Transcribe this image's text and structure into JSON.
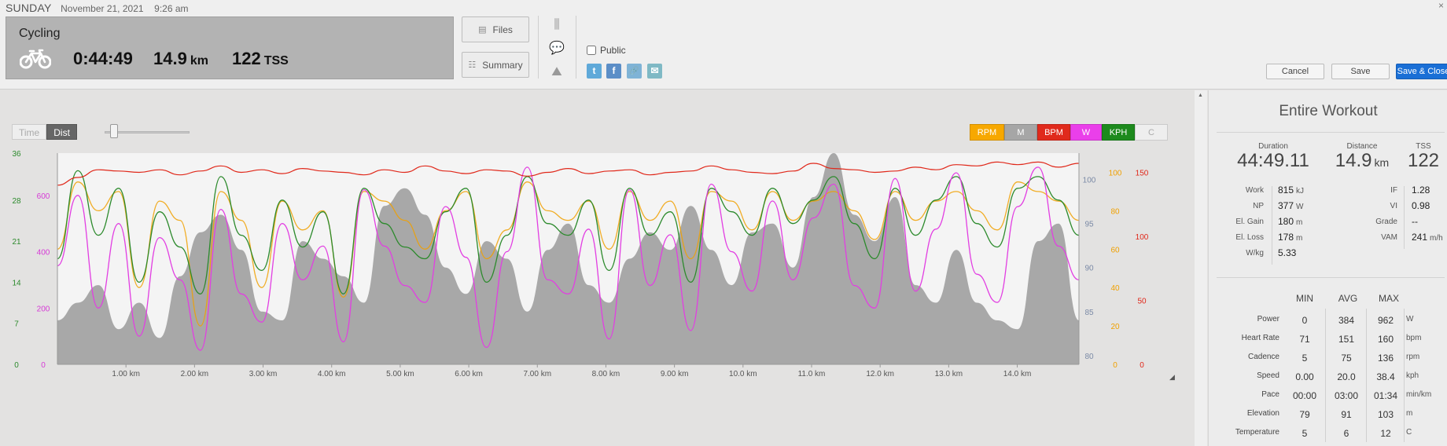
{
  "header": {
    "day": "SUNDAY",
    "date": "November 21, 2021",
    "time": "9:26 am",
    "close_icon": "×"
  },
  "summary": {
    "sport": "Cycling",
    "sport_icon": "bicycle-icon",
    "duration": "0:44:49",
    "distance": "14.9",
    "distance_unit": "km",
    "tss": "122",
    "tss_unit": "TSS"
  },
  "sidebuttons": {
    "files": "Files",
    "summary": "Summary",
    "files_icon": "▤",
    "summary_icon": "☷"
  },
  "tools": {
    "bar_icon": "⫼",
    "comment_icon": "💬",
    "area_icon": "⛰"
  },
  "share": {
    "public_label": "Public",
    "public_checked": false,
    "twitter_icon": "t",
    "facebook_icon": "f",
    "link_icon": "🔗",
    "email_icon": "✉",
    "colors": {
      "twitter": "#5fa9d9",
      "facebook": "#5b8ec7",
      "link": "#7fb3d6",
      "email": "#7fb9c5"
    }
  },
  "actions": {
    "cancel": "Cancel",
    "save": "Save",
    "save_close": "Save & Close"
  },
  "chart_controls": {
    "time": "Time",
    "dist": "Dist",
    "toggles": [
      {
        "label": "RPM",
        "bg": "#f7a800",
        "fg": "#ffffff"
      },
      {
        "label": "M",
        "bg": "#a6a6a6",
        "fg": "#ffffff"
      },
      {
        "label": "BPM",
        "bg": "#e02a1c",
        "fg": "#ffffff"
      },
      {
        "label": "W",
        "bg": "#ea3fea",
        "fg": "#ffffff"
      },
      {
        "label": "KPH",
        "bg": "#1d8a1d",
        "fg": "#ffffff"
      },
      {
        "label": "C",
        "bg": "#eeeeee",
        "fg": "#aaaaaa"
      }
    ],
    "resize_icon": "◢"
  },
  "chart_data": {
    "type": "line",
    "x_unit": "km",
    "xlim": [
      0,
      14.9
    ],
    "x_ticks": [
      "1.00 km",
      "2.00 km",
      "3.00 km",
      "4.00 km",
      "5.00 km",
      "6.00 km",
      "7.00 km",
      "8.00 km",
      "9.00 km",
      "10.0 km",
      "11.0 km",
      "12.0 km",
      "13.0 km",
      "14.0 km"
    ],
    "axes": {
      "speed": {
        "ticks": [
          "36",
          "28",
          "21",
          "14",
          "7",
          "0"
        ],
        "range": [
          0,
          36
        ],
        "color": "#2c8a2c"
      },
      "power": {
        "ticks": [
          "600",
          "400",
          "200",
          "0"
        ],
        "range": [
          0,
          750
        ],
        "color": "#d63ad6"
      },
      "elevation": {
        "ticks": [
          "100",
          "95",
          "90",
          "85",
          "80"
        ],
        "range": [
          79,
          103
        ],
        "color": "#7b8aa6"
      },
      "cadence": {
        "ticks": [
          "100",
          "80",
          "60",
          "40",
          "20",
          "0"
        ],
        "range": [
          0,
          110
        ],
        "color": "#f0a000"
      },
      "heart_rate": {
        "ticks": [
          "150",
          "100",
          "50",
          "0"
        ],
        "range": [
          0,
          165
        ],
        "color": "#e0281a"
      }
    },
    "series": [
      {
        "name": "Heart Rate",
        "color": "#e0281a",
        "values": [
          140,
          146,
          152,
          151,
          150,
          152,
          148,
          151,
          155,
          150,
          152,
          149,
          153,
          151,
          150,
          148,
          152,
          150,
          155,
          151,
          149,
          152,
          151,
          147,
          150,
          153,
          149,
          151,
          152,
          148,
          150,
          151,
          155,
          152,
          150,
          149,
          151,
          157,
          153,
          152,
          150,
          151,
          154,
          152,
          156,
          155,
          158,
          156,
          158,
          154,
          157
        ]
      },
      {
        "name": "Elevation",
        "color": "#9a9a9a",
        "values": [
          84,
          86,
          88,
          83,
          86,
          82,
          89,
          94,
          96,
          92,
          85,
          84,
          93,
          91,
          89,
          86,
          97,
          99,
          96,
          90,
          87,
          93,
          91,
          85,
          92,
          95,
          88,
          86,
          91,
          94,
          92,
          97,
          92,
          88,
          94,
          95,
          90,
          98,
          103,
          96,
          93,
          98,
          88,
          86,
          92,
          86,
          84,
          83,
          93,
          95,
          84
        ]
      },
      {
        "name": "Cadence",
        "color": "#f0a000",
        "values": [
          60,
          95,
          80,
          90,
          40,
          85,
          75,
          20,
          90,
          75,
          40,
          85,
          70,
          80,
          35,
          90,
          85,
          75,
          60,
          80,
          90,
          55,
          70,
          95,
          80,
          75,
          85,
          60,
          90,
          75,
          85,
          55,
          90,
          85,
          70,
          90,
          75,
          85,
          90,
          80,
          65,
          90,
          75,
          85,
          90,
          80,
          70,
          95,
          90,
          85,
          75
        ]
      },
      {
        "name": "Speed",
        "color": "#2c8a2c",
        "values": [
          18,
          33,
          22,
          30,
          14,
          26,
          20,
          12,
          32,
          22,
          16,
          28,
          20,
          26,
          12,
          30,
          24,
          20,
          18,
          26,
          30,
          14,
          22,
          32,
          24,
          22,
          28,
          16,
          30,
          22,
          26,
          14,
          30,
          26,
          22,
          30,
          24,
          28,
          32,
          24,
          18,
          30,
          22,
          28,
          32,
          24,
          20,
          30,
          32,
          28,
          22
        ]
      },
      {
        "name": "Power",
        "color": "#e23ee2",
        "values": [
          350,
          600,
          200,
          500,
          100,
          450,
          300,
          50,
          550,
          250,
          150,
          500,
          300,
          420,
          80,
          620,
          420,
          280,
          220,
          560,
          380,
          60,
          400,
          700,
          300,
          250,
          480,
          90,
          620,
          280,
          460,
          120,
          640,
          400,
          260,
          580,
          300,
          520,
          640,
          280,
          200,
          660,
          260,
          480,
          680,
          320,
          220,
          560,
          700,
          420,
          300
        ]
      }
    ]
  },
  "panel": {
    "title": "Entire Workout",
    "duration_label": "Duration",
    "duration": "44:49.11",
    "distance_label": "Distance",
    "distance": "14.9",
    "distance_unit": "km",
    "tss_label": "TSS",
    "tss": "122",
    "left_stats": [
      {
        "k": "Work",
        "v": "815",
        "u": "kJ"
      },
      {
        "k": "NP",
        "v": "377",
        "u": "W"
      },
      {
        "k": "El. Gain",
        "v": "180",
        "u": "m"
      },
      {
        "k": "El. Loss",
        "v": "178",
        "u": "m"
      },
      {
        "k": "W/kg",
        "v": "5.33",
        "u": ""
      }
    ],
    "right_stats": [
      {
        "k": "IF",
        "v": "1.28",
        "u": ""
      },
      {
        "k": "VI",
        "v": "0.98",
        "u": ""
      },
      {
        "k": "Grade",
        "v": "--",
        "u": ""
      },
      {
        "k": "VAM",
        "v": "241",
        "u": "m/h"
      }
    ],
    "range_headers": [
      "MIN",
      "AVG",
      "MAX"
    ],
    "range_rows": [
      {
        "name": "Power",
        "min": "0",
        "avg": "384",
        "max": "962",
        "unit": "W"
      },
      {
        "name": "Heart Rate",
        "min": "71",
        "avg": "151",
        "max": "160",
        "unit": "bpm"
      },
      {
        "name": "Cadence",
        "min": "5",
        "avg": "75",
        "max": "136",
        "unit": "rpm"
      },
      {
        "name": "Speed",
        "min": "0.00",
        "avg": "20.0",
        "max": "38.4",
        "unit": "kph"
      },
      {
        "name": "Pace",
        "min": "00:00",
        "avg": "03:00",
        "max": "01:34",
        "unit": "min/km"
      },
      {
        "name": "Elevation",
        "min": "79",
        "avg": "91",
        "max": "103",
        "unit": "m"
      },
      {
        "name": "Temperature",
        "min": "5",
        "avg": "6",
        "max": "12",
        "unit": "C"
      }
    ]
  }
}
